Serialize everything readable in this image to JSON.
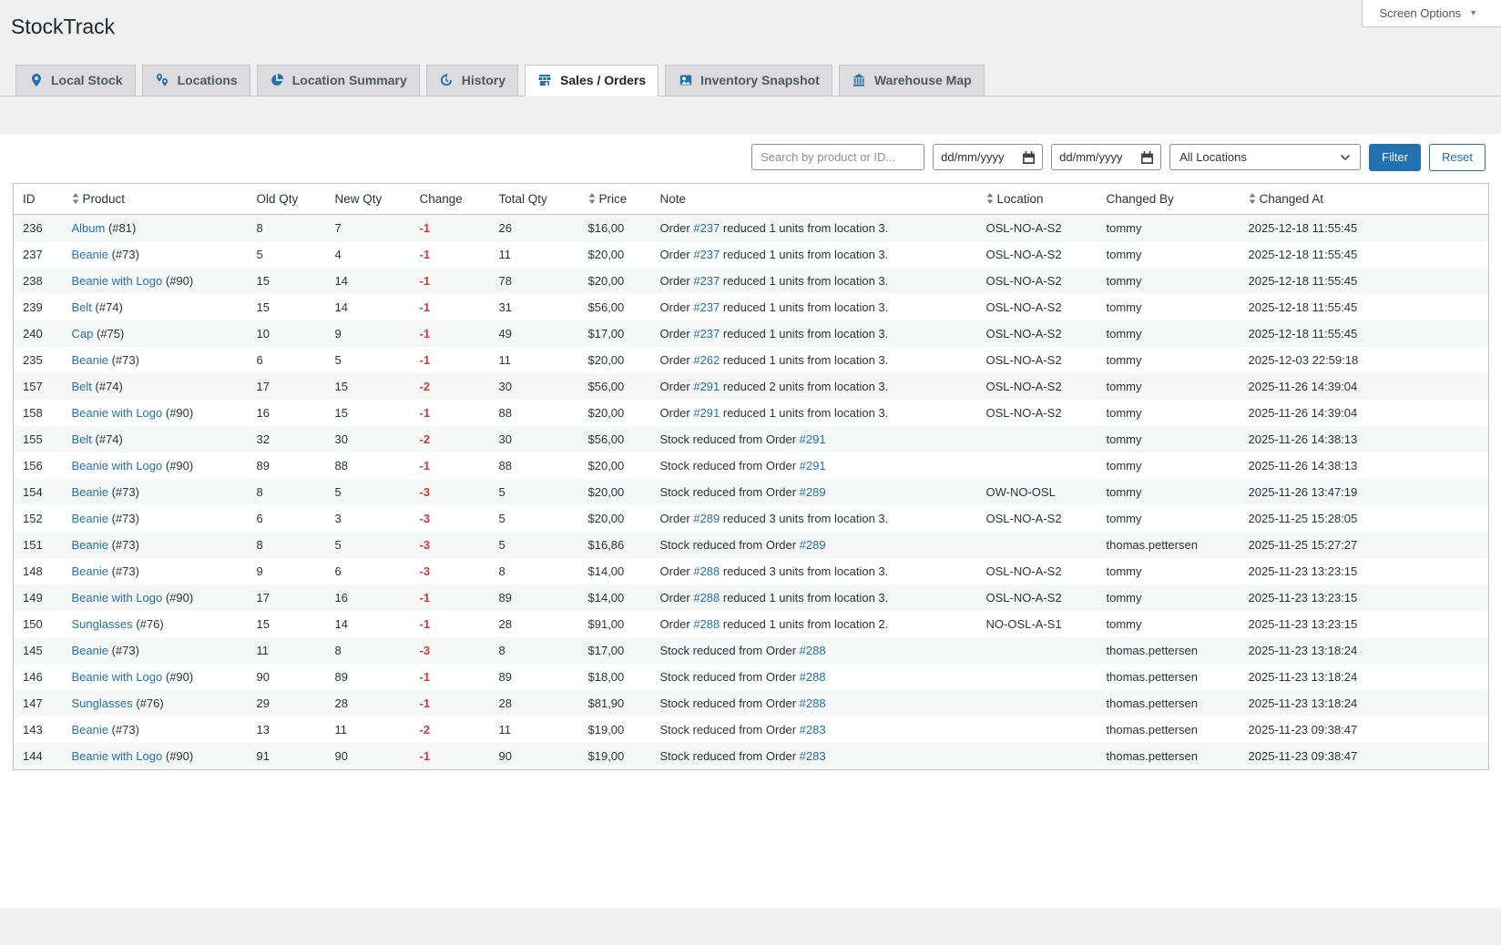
{
  "app": {
    "title": "StockTrack",
    "screen_options_label": "Screen Options",
    "screen_options_arrow": "▼"
  },
  "tabs": [
    {
      "label": "Local Stock",
      "icon": "map-pin",
      "active": false
    },
    {
      "label": "Locations",
      "icon": "map-pins",
      "active": false
    },
    {
      "label": "Location Summary",
      "icon": "pie-chart",
      "active": false
    },
    {
      "label": "History",
      "icon": "history-clock",
      "active": false
    },
    {
      "label": "Sales / Orders",
      "icon": "storefront",
      "active": true
    },
    {
      "label": "Inventory Snapshot",
      "icon": "snapshot-photo",
      "active": false
    },
    {
      "label": "Warehouse Map",
      "icon": "warehouse-building",
      "active": false
    }
  ],
  "filters": {
    "search_placeholder": "Search by product or ID...",
    "date_from_placeholder": "dd/mm/yyyy",
    "date_to_placeholder": "dd/mm/yyyy",
    "location_selected": "All Locations",
    "filter_button": "Filter",
    "reset_button": "Reset"
  },
  "table": {
    "columns": [
      {
        "key": "id",
        "label": "ID",
        "sortable": false
      },
      {
        "key": "product",
        "label": "Product",
        "sortable": true
      },
      {
        "key": "old_qty",
        "label": "Old Qty",
        "sortable": false
      },
      {
        "key": "new_qty",
        "label": "New Qty",
        "sortable": false
      },
      {
        "key": "change",
        "label": "Change",
        "sortable": false
      },
      {
        "key": "total_qty",
        "label": "Total Qty",
        "sortable": false
      },
      {
        "key": "price",
        "label": "Price",
        "sortable": true
      },
      {
        "key": "note",
        "label": "Note",
        "sortable": false
      },
      {
        "key": "location",
        "label": "Location",
        "sortable": true
      },
      {
        "key": "changed_by",
        "label": "Changed By",
        "sortable": false
      },
      {
        "key": "changed_at",
        "label": "Changed At",
        "sortable": true
      }
    ],
    "rows": [
      {
        "id": "236",
        "product": "Album",
        "product_ref": "(#81)",
        "old_qty": "8",
        "new_qty": "7",
        "change": "-1",
        "total_qty": "26",
        "price": "$16,00",
        "note_pre": "Order ",
        "note_link": "#237",
        "note_post": " reduced 1 units from location 3.",
        "location": "OSL-NO-A-S2",
        "changed_by": "tommy",
        "changed_at": "2025-12-18 11:55:45"
      },
      {
        "id": "237",
        "product": "Beanie",
        "product_ref": "(#73)",
        "old_qty": "5",
        "new_qty": "4",
        "change": "-1",
        "total_qty": "11",
        "price": "$20,00",
        "note_pre": "Order ",
        "note_link": "#237",
        "note_post": " reduced 1 units from location 3.",
        "location": "OSL-NO-A-S2",
        "changed_by": "tommy",
        "changed_at": "2025-12-18 11:55:45"
      },
      {
        "id": "238",
        "product": "Beanie with Logo",
        "product_ref": "(#90)",
        "old_qty": "15",
        "new_qty": "14",
        "change": "-1",
        "total_qty": "78",
        "price": "$20,00",
        "note_pre": "Order ",
        "note_link": "#237",
        "note_post": " reduced 1 units from location 3.",
        "location": "OSL-NO-A-S2",
        "changed_by": "tommy",
        "changed_at": "2025-12-18 11:55:45"
      },
      {
        "id": "239",
        "product": "Belt",
        "product_ref": "(#74)",
        "old_qty": "15",
        "new_qty": "14",
        "change": "-1",
        "total_qty": "31",
        "price": "$56,00",
        "note_pre": "Order ",
        "note_link": "#237",
        "note_post": " reduced 1 units from location 3.",
        "location": "OSL-NO-A-S2",
        "changed_by": "tommy",
        "changed_at": "2025-12-18 11:55:45"
      },
      {
        "id": "240",
        "product": "Cap",
        "product_ref": "(#75)",
        "old_qty": "10",
        "new_qty": "9",
        "change": "-1",
        "total_qty": "49",
        "price": "$17,00",
        "note_pre": "Order ",
        "note_link": "#237",
        "note_post": " reduced 1 units from location 3.",
        "location": "OSL-NO-A-S2",
        "changed_by": "tommy",
        "changed_at": "2025-12-18 11:55:45"
      },
      {
        "id": "235",
        "product": "Beanie",
        "product_ref": "(#73)",
        "old_qty": "6",
        "new_qty": "5",
        "change": "-1",
        "total_qty": "11",
        "price": "$20,00",
        "note_pre": "Order ",
        "note_link": "#262",
        "note_post": " reduced 1 units from location 3.",
        "location": "OSL-NO-A-S2",
        "changed_by": "tommy",
        "changed_at": "2025-12-03 22:59:18"
      },
      {
        "id": "157",
        "product": "Belt",
        "product_ref": "(#74)",
        "old_qty": "17",
        "new_qty": "15",
        "change": "-2",
        "total_qty": "30",
        "price": "$56,00",
        "note_pre": "Order ",
        "note_link": "#291",
        "note_post": " reduced 2 units from location 3.",
        "location": "OSL-NO-A-S2",
        "changed_by": "tommy",
        "changed_at": "2025-11-26 14:39:04"
      },
      {
        "id": "158",
        "product": "Beanie with Logo",
        "product_ref": "(#90)",
        "old_qty": "16",
        "new_qty": "15",
        "change": "-1",
        "total_qty": "88",
        "price": "$20,00",
        "note_pre": "Order ",
        "note_link": "#291",
        "note_post": " reduced 1 units from location 3.",
        "location": "OSL-NO-A-S2",
        "changed_by": "tommy",
        "changed_at": "2025-11-26 14:39:04"
      },
      {
        "id": "155",
        "product": "Belt",
        "product_ref": "(#74)",
        "old_qty": "32",
        "new_qty": "30",
        "change": "-2",
        "total_qty": "30",
        "price": "$56,00",
        "note_pre": "Stock reduced from Order ",
        "note_link": "#291",
        "note_post": "",
        "location": "",
        "changed_by": "tommy",
        "changed_at": "2025-11-26 14:38:13"
      },
      {
        "id": "156",
        "product": "Beanie with Logo",
        "product_ref": "(#90)",
        "old_qty": "89",
        "new_qty": "88",
        "change": "-1",
        "total_qty": "88",
        "price": "$20,00",
        "note_pre": "Stock reduced from Order ",
        "note_link": "#291",
        "note_post": "",
        "location": "",
        "changed_by": "tommy",
        "changed_at": "2025-11-26 14:38:13"
      },
      {
        "id": "154",
        "product": "Beanie",
        "product_ref": "(#73)",
        "old_qty": "8",
        "new_qty": "5",
        "change": "-3",
        "total_qty": "5",
        "price": "$20,00",
        "note_pre": "Stock reduced from Order ",
        "note_link": "#289",
        "note_post": "",
        "location": "OW-NO-OSL",
        "changed_by": "tommy",
        "changed_at": "2025-11-26 13:47:19"
      },
      {
        "id": "152",
        "product": "Beanie",
        "product_ref": "(#73)",
        "old_qty": "6",
        "new_qty": "3",
        "change": "-3",
        "total_qty": "5",
        "price": "$20,00",
        "note_pre": "Order ",
        "note_link": "#289",
        "note_post": " reduced 3 units from location 3.",
        "location": "OSL-NO-A-S2",
        "changed_by": "tommy",
        "changed_at": "2025-11-25 15:28:05"
      },
      {
        "id": "151",
        "product": "Beanie",
        "product_ref": "(#73)",
        "old_qty": "8",
        "new_qty": "5",
        "change": "-3",
        "total_qty": "5",
        "price": "$16,86",
        "note_pre": "Stock reduced from Order ",
        "note_link": "#289",
        "note_post": "",
        "location": "",
        "changed_by": "thomas.pettersen",
        "changed_at": "2025-11-25 15:27:27"
      },
      {
        "id": "148",
        "product": "Beanie",
        "product_ref": "(#73)",
        "old_qty": "9",
        "new_qty": "6",
        "change": "-3",
        "total_qty": "8",
        "price": "$14,00",
        "note_pre": "Order ",
        "note_link": "#288",
        "note_post": " reduced 3 units from location 3.",
        "location": "OSL-NO-A-S2",
        "changed_by": "tommy",
        "changed_at": "2025-11-23 13:23:15"
      },
      {
        "id": "149",
        "product": "Beanie with Logo",
        "product_ref": "(#90)",
        "old_qty": "17",
        "new_qty": "16",
        "change": "-1",
        "total_qty": "89",
        "price": "$14,00",
        "note_pre": "Order ",
        "note_link": "#288",
        "note_post": " reduced 1 units from location 3.",
        "location": "OSL-NO-A-S2",
        "changed_by": "tommy",
        "changed_at": "2025-11-23 13:23:15"
      },
      {
        "id": "150",
        "product": "Sunglasses",
        "product_ref": "(#76)",
        "old_qty": "15",
        "new_qty": "14",
        "change": "-1",
        "total_qty": "28",
        "price": "$91,00",
        "note_pre": "Order ",
        "note_link": "#288",
        "note_post": " reduced 1 units from location 2.",
        "location": "NO-OSL-A-S1",
        "changed_by": "tommy",
        "changed_at": "2025-11-23 13:23:15"
      },
      {
        "id": "145",
        "product": "Beanie",
        "product_ref": "(#73)",
        "old_qty": "11",
        "new_qty": "8",
        "change": "-3",
        "total_qty": "8",
        "price": "$17,00",
        "note_pre": "Stock reduced from Order ",
        "note_link": "#288",
        "note_post": "",
        "location": "",
        "changed_by": "thomas.pettersen",
        "changed_at": "2025-11-23 13:18:24"
      },
      {
        "id": "146",
        "product": "Beanie with Logo",
        "product_ref": "(#90)",
        "old_qty": "90",
        "new_qty": "89",
        "change": "-1",
        "total_qty": "89",
        "price": "$18,00",
        "note_pre": "Stock reduced from Order ",
        "note_link": "#288",
        "note_post": "",
        "location": "",
        "changed_by": "thomas.pettersen",
        "changed_at": "2025-11-23 13:18:24"
      },
      {
        "id": "147",
        "product": "Sunglasses",
        "product_ref": "(#76)",
        "old_qty": "29",
        "new_qty": "28",
        "change": "-1",
        "total_qty": "28",
        "price": "$81,90",
        "note_pre": "Stock reduced from Order ",
        "note_link": "#288",
        "note_post": "",
        "location": "",
        "changed_by": "thomas.pettersen",
        "changed_at": "2025-11-23 13:18:24"
      },
      {
        "id": "143",
        "product": "Beanie",
        "product_ref": "(#73)",
        "old_qty": "13",
        "new_qty": "11",
        "change": "-2",
        "total_qty": "11",
        "price": "$19,00",
        "note_pre": "Stock reduced from Order ",
        "note_link": "#283",
        "note_post": "",
        "location": "",
        "changed_by": "thomas.pettersen",
        "changed_at": "2025-11-23 09:38:47"
      },
      {
        "id": "144",
        "product": "Beanie with Logo",
        "product_ref": "(#90)",
        "old_qty": "91",
        "new_qty": "90",
        "change": "-1",
        "total_qty": "90",
        "price": "$19,00",
        "note_pre": "Stock reduced from Order ",
        "note_link": "#283",
        "note_post": "",
        "location": "",
        "changed_by": "thomas.pettersen",
        "changed_at": "2025-11-23 09:38:47"
      }
    ]
  },
  "colors": {
    "accent": "#2271b1",
    "link": "#2271b1",
    "negative": "#d63638",
    "page_bg": "#f0f0f1",
    "border": "#c3c4c7",
    "stripe": "#f6f7f7",
    "tab_inactive_bg": "#dcdcde"
  }
}
